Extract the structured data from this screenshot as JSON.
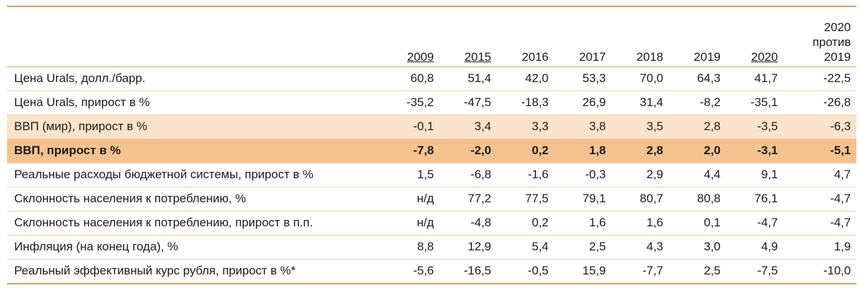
{
  "columns": [
    {
      "label": "2009",
      "underline": true
    },
    {
      "label": "2015",
      "underline": true
    },
    {
      "label": "2016",
      "underline": false
    },
    {
      "label": "2017",
      "underline": false
    },
    {
      "label": "2018",
      "underline": false
    },
    {
      "label": "2019",
      "underline": false
    },
    {
      "label": "2020",
      "underline": true
    }
  ],
  "last_column": [
    "2020",
    "против",
    "2019"
  ],
  "rows": [
    {
      "label": "Цена Urals, долл./барр.",
      "values": [
        "60,8",
        "51,4",
        "42,0",
        "53,3",
        "70,0",
        "64,3",
        "41,7",
        "-22,5"
      ]
    },
    {
      "label": "Цена Urals, прирост в %",
      "values": [
        "-35,2",
        "-47,5",
        "-18,3",
        "26,9",
        "31,4",
        "-8,2",
        "-35,1",
        "-26,8"
      ]
    },
    {
      "label": "ВВП (мир), прирост в %",
      "values": [
        "-0,1",
        "3,4",
        "3,3",
        "3,8",
        "3,5",
        "2,8",
        "-3,5",
        "-6,3"
      ]
    },
    {
      "label": "ВВП, прирост в %",
      "values": [
        "-7,8",
        "-2,0",
        "0,2",
        "1,8",
        "2,8",
        "2,0",
        "-3,1",
        "-5,1"
      ]
    },
    {
      "label": "Реальные расходы бюджетной системы, прирост в %",
      "values": [
        "1,5",
        "-6,8",
        "-1,6",
        "-0,3",
        "2,9",
        "4,4",
        "9,1",
        "4,7"
      ]
    },
    {
      "label": "Склонность населения к потреблению, %",
      "values": [
        "н/д",
        "77,2",
        "77,5",
        "79,1",
        "80,7",
        "80,8",
        "76,1",
        "-4,7"
      ]
    },
    {
      "label": "Склонность населения к потреблению, прирост в п.п.",
      "values": [
        "н/д",
        "-4,8",
        "0,2",
        "1,6",
        "1,6",
        "0,1",
        "-4,7",
        "-4,7"
      ]
    },
    {
      "label": "Инфляция (на конец года), %",
      "values": [
        "8,8",
        "12,9",
        "5,4",
        "2,5",
        "4,3",
        "3,0",
        "4,9",
        "1,9"
      ]
    },
    {
      "label": "Реальный эффективный курс рубля, прирост в %*",
      "values": [
        "-5,6",
        "-16,5",
        "-0,5",
        "15,9",
        "-7,7",
        "2,5",
        "-7,5",
        "-10,0"
      ]
    }
  ],
  "colors": {
    "rule": "#c9a06a",
    "highlight_light": "#fbe3cc",
    "highlight_strong": "#f6c28f"
  }
}
